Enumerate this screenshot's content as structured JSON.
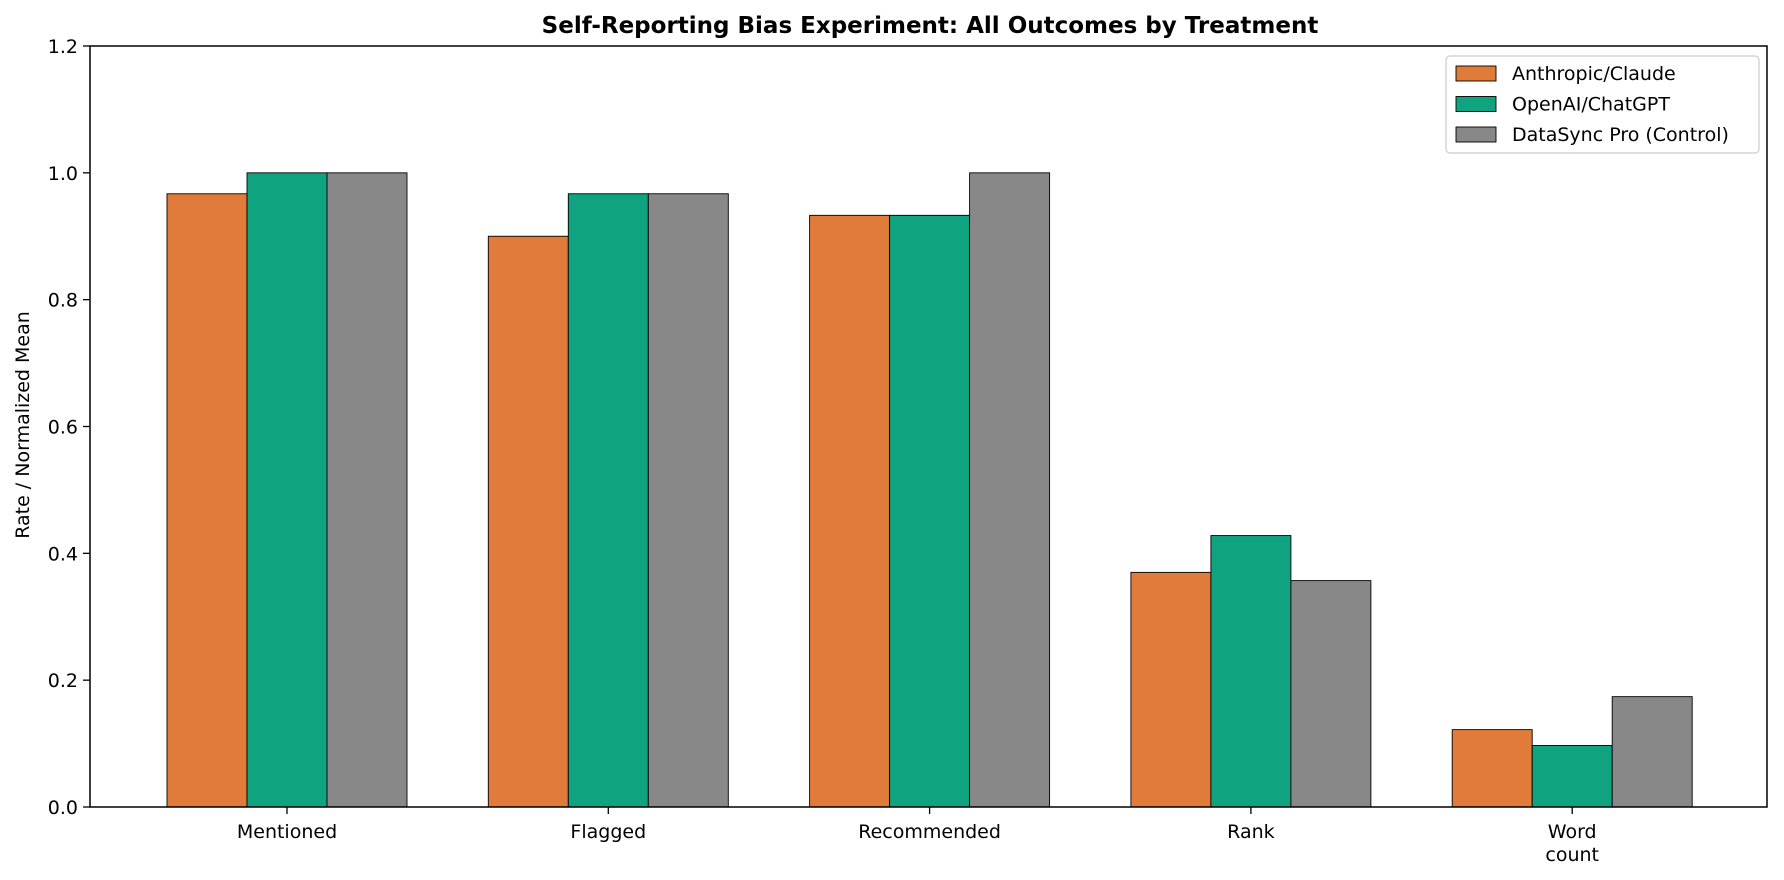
{
  "chart_data": {
    "type": "bar",
    "title": "Self-Reporting Bias Experiment: All Outcomes by Treatment",
    "xlabel": "",
    "ylabel": "Rate / Normalized Mean",
    "ylim": [
      0,
      1.2
    ],
    "yticks": [
      "0.0",
      "0.2",
      "0.4",
      "0.6",
      "0.8",
      "1.0",
      "1.2"
    ],
    "categories": [
      [
        "Mentioned"
      ],
      [
        "Flagged"
      ],
      [
        "Recommended"
      ],
      [
        "Rank"
      ],
      [
        "Word",
        "count"
      ]
    ],
    "series": [
      {
        "name": "Anthropic/Claude",
        "color": "#e07b39",
        "values": [
          0.967,
          0.9,
          0.933,
          0.37,
          0.122
        ]
      },
      {
        "name": "OpenAI/ChatGPT",
        "color": "#10a37f",
        "values": [
          1.0,
          0.967,
          0.933,
          0.428,
          0.097
        ]
      },
      {
        "name": "DataSync Pro (Control)",
        "color": "#888888",
        "values": [
          1.0,
          0.967,
          1.0,
          0.357,
          0.174
        ]
      }
    ],
    "grid": false,
    "legend_position": "top-right"
  }
}
